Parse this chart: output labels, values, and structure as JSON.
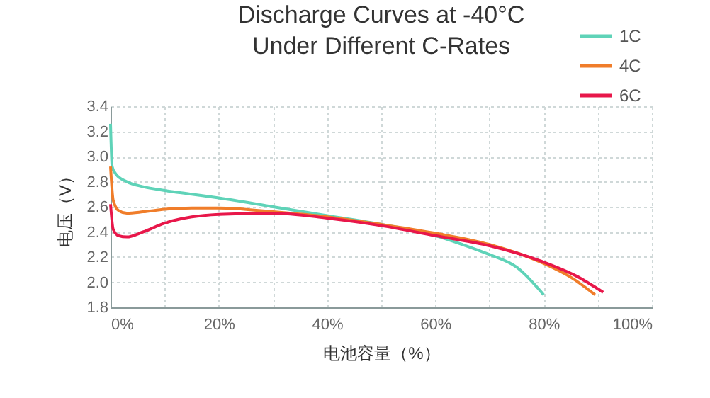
{
  "chart_data": {
    "type": "line",
    "title": "Discharge Curves at -40°C\nUnder Different C-Rates",
    "xlabel": "电池容量（%）",
    "ylabel": "电压（V）",
    "xlim": [
      0,
      100
    ],
    "xticks": [
      {
        "value": 0,
        "label": "0%"
      },
      {
        "value": 10,
        "label": null
      },
      {
        "value": 20,
        "label": "20%"
      },
      {
        "value": 30,
        "label": null
      },
      {
        "value": 40,
        "label": "40%"
      },
      {
        "value": 50,
        "label": null
      },
      {
        "value": 60,
        "label": "60%"
      },
      {
        "value": 70,
        "label": null
      },
      {
        "value": 80,
        "label": "80%"
      },
      {
        "value": 90,
        "label": null
      },
      {
        "value": 100,
        "label": "100%"
      }
    ],
    "ylim": [
      1.8,
      3.4
    ],
    "yticks": [
      {
        "value": 1.8,
        "label": "1.8"
      },
      {
        "value": 2,
        "label": "2.0"
      },
      {
        "value": 2.2,
        "label": "2.2"
      },
      {
        "value": 2.4,
        "label": "2.4"
      },
      {
        "value": 2.6,
        "label": "2.6"
      },
      {
        "value": 2.8,
        "label": "2.8"
      },
      {
        "value": 3,
        "label": "3.0"
      },
      {
        "value": 3.2,
        "label": "3.2"
      },
      {
        "value": 3.4,
        "label": "3.4"
      }
    ],
    "grid": true,
    "legend": "top right",
    "line_style": "solid",
    "marker": "none",
    "series": [
      {
        "name": "1C",
        "color": "#5fd3b8",
        "x": [
          0,
          0.3,
          1,
          3,
          6,
          10,
          15,
          20,
          30,
          40,
          50,
          60,
          65,
          70,
          75,
          80
        ],
        "values": [
          3.26,
          2.92,
          2.86,
          2.8,
          2.76,
          2.73,
          2.7,
          2.67,
          2.6,
          2.53,
          2.46,
          2.37,
          2.3,
          2.22,
          2.12,
          1.9
        ]
      },
      {
        "name": "4C",
        "color": "#f07d2a",
        "x": [
          0,
          0.5,
          1.5,
          3,
          6,
          10,
          15,
          20,
          30,
          40,
          50,
          60,
          70,
          80,
          85,
          89.5
        ],
        "values": [
          2.92,
          2.65,
          2.57,
          2.55,
          2.56,
          2.58,
          2.59,
          2.59,
          2.56,
          2.52,
          2.46,
          2.39,
          2.3,
          2.15,
          2.04,
          1.9
        ]
      },
      {
        "name": "6C",
        "color": "#e8174a",
        "x": [
          0,
          0.5,
          1.5,
          3,
          6,
          10,
          15,
          20,
          30,
          40,
          50,
          60,
          70,
          80,
          86,
          91
        ],
        "values": [
          2.62,
          2.42,
          2.37,
          2.36,
          2.4,
          2.47,
          2.52,
          2.54,
          2.55,
          2.51,
          2.45,
          2.37,
          2.29,
          2.16,
          2.05,
          1.92
        ]
      }
    ]
  }
}
